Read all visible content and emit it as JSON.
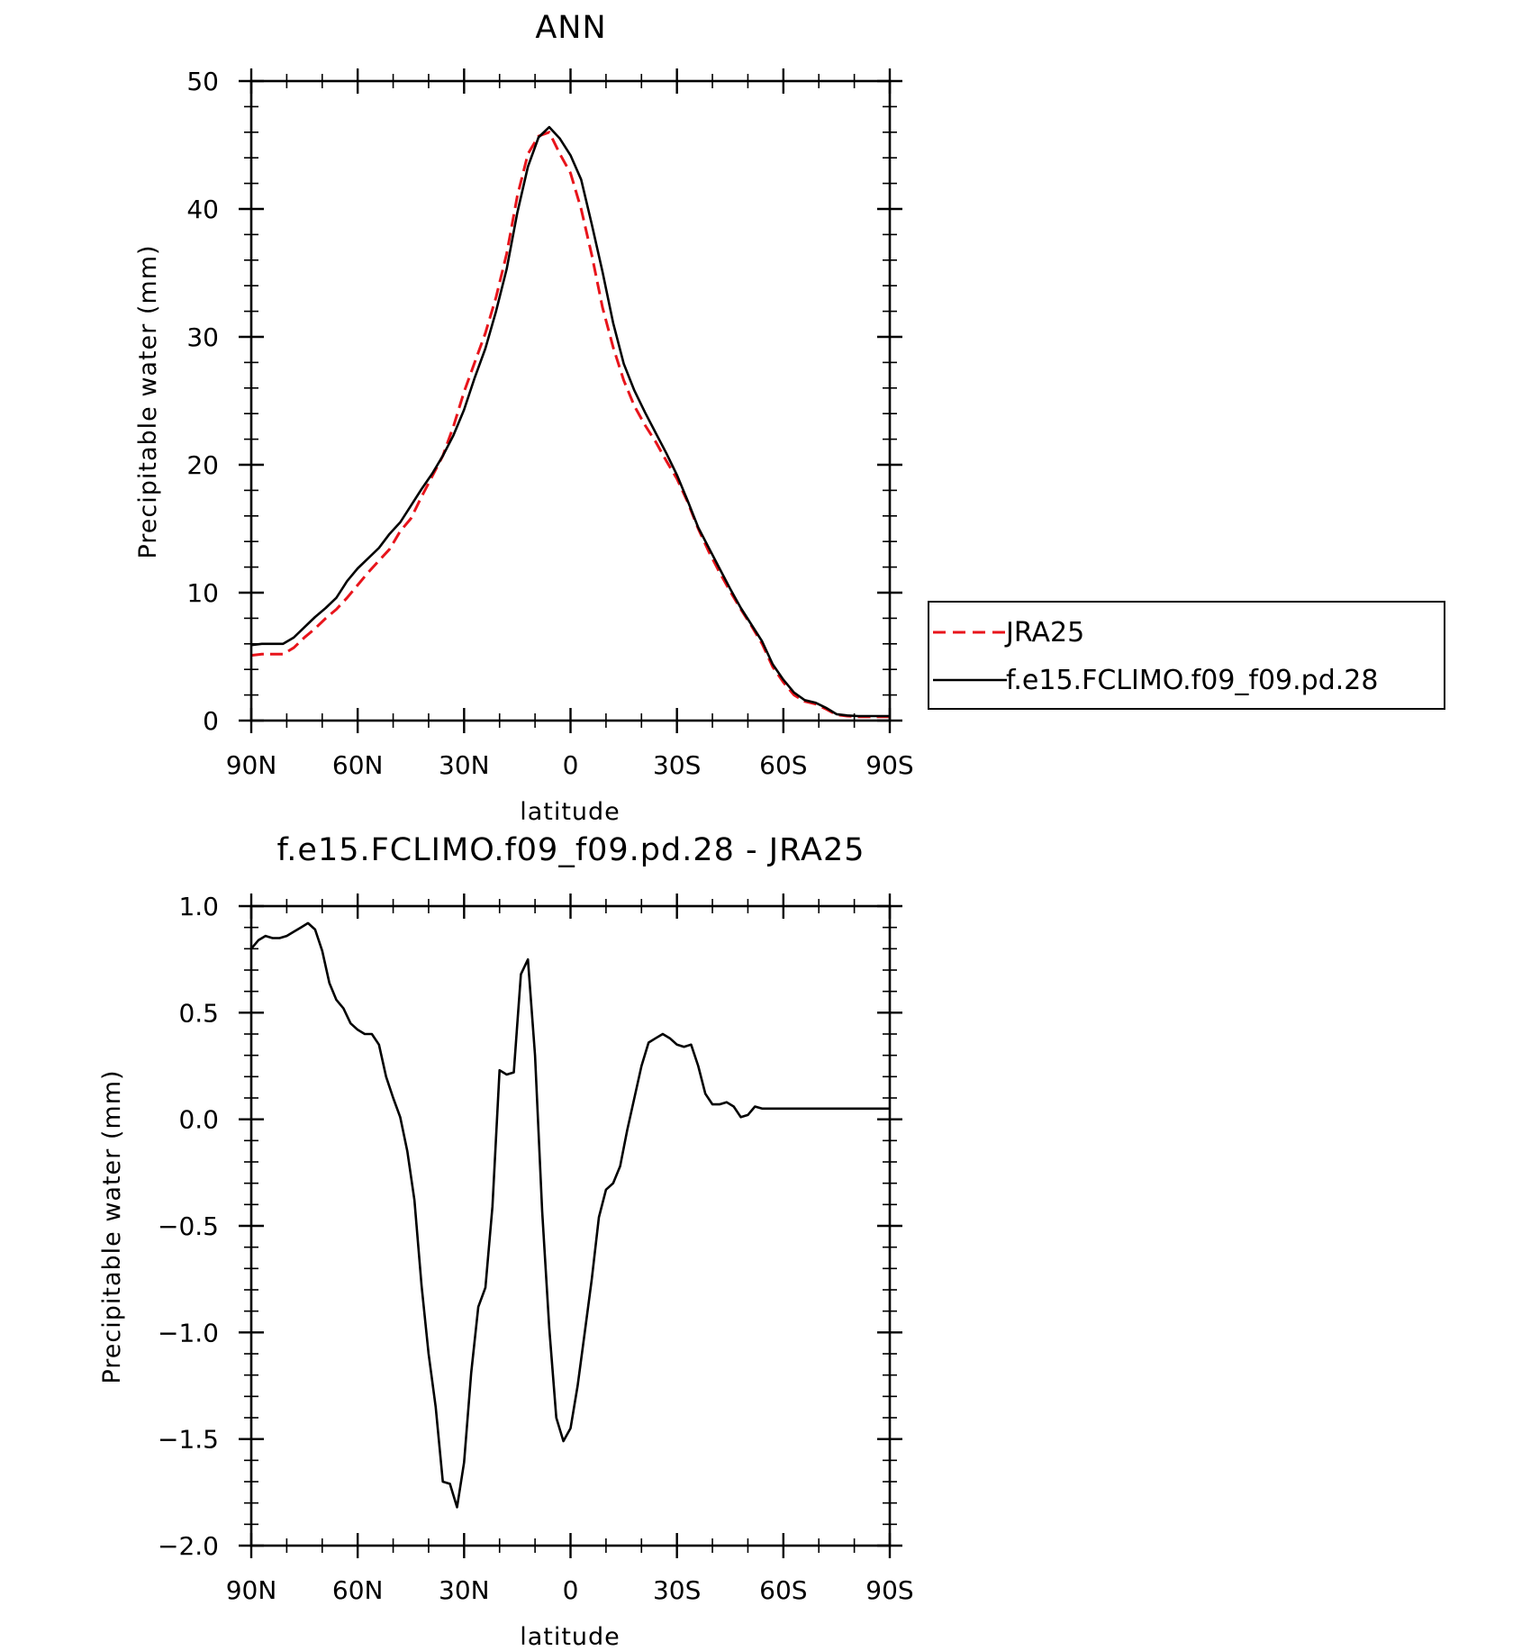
{
  "chart_data": [
    {
      "type": "line",
      "title": "ANN",
      "xlabel": "latitude",
      "ylabel": "Precipitable water (mm)",
      "xlim": [
        90,
        -90
      ],
      "ylim": [
        0,
        50
      ],
      "x_ticks": [
        90,
        60,
        30,
        0,
        -30,
        -60,
        -90
      ],
      "x_tick_labels": [
        "90N",
        "60N",
        "30N",
        "0",
        "30S",
        "60S",
        "90S"
      ],
      "y_ticks": [
        0,
        10,
        20,
        30,
        40,
        50
      ],
      "y_tick_labels": [
        "0",
        "10",
        "20",
        "30",
        "40",
        "50"
      ],
      "grid": false,
      "legend": {
        "placement": "right",
        "entries": [
          "JRA25",
          "f.e15.FCLIMO.f09_f09.pd.28"
        ]
      },
      "series": [
        {
          "name": "JRA25",
          "color": "#e8141b",
          "dash": "dashed",
          "x": [
            90,
            87,
            84,
            81,
            78,
            75,
            72,
            69,
            66,
            63,
            60,
            57,
            54,
            51,
            48,
            45,
            42,
            39,
            36,
            33,
            30,
            27,
            24,
            21,
            18,
            15,
            12,
            9,
            6,
            3,
            0,
            -3,
            -6,
            -9,
            -12,
            -15,
            -18,
            -21,
            -24,
            -27,
            -30,
            -33,
            -36,
            -39,
            -42,
            -45,
            -48,
            -51,
            -54,
            -57,
            -60,
            -63,
            -66,
            -69,
            -72,
            -75,
            -78,
            -81,
            -84,
            -87,
            -90
          ],
          "y": [
            5.1,
            5.2,
            5.2,
            5.2,
            5.7,
            6.5,
            7.2,
            8.0,
            8.7,
            9.6,
            10.6,
            11.6,
            12.5,
            13.4,
            14.8,
            15.8,
            17.5,
            19.1,
            20.7,
            23.0,
            25.7,
            28.0,
            30.3,
            33.1,
            36.5,
            41.0,
            44.3,
            45.7,
            46.0,
            44.3,
            42.8,
            40.0,
            36.4,
            32.3,
            29.2,
            26.6,
            24.6,
            23.1,
            21.8,
            20.3,
            18.9,
            17.1,
            15.0,
            13.2,
            11.6,
            10.1,
            8.7,
            7.4,
            6.0,
            4.2,
            3.0,
            2.0,
            1.5,
            1.3,
            0.9,
            0.45,
            0.35,
            0.3,
            0.3,
            0.3,
            0.3
          ]
        },
        {
          "name": "f.e15.FCLIMO.f09_f09.pd.28",
          "color": "#000000",
          "dash": "solid",
          "x": [
            90,
            87,
            84,
            81,
            78,
            75,
            72,
            69,
            66,
            63,
            60,
            57,
            54,
            51,
            48,
            45,
            42,
            39,
            36,
            33,
            30,
            27,
            24,
            21,
            18,
            15,
            12,
            9,
            6,
            3,
            0,
            -3,
            -6,
            -9,
            -12,
            -15,
            -18,
            -21,
            -24,
            -27,
            -30,
            -33,
            -36,
            -39,
            -42,
            -45,
            -48,
            -51,
            -54,
            -57,
            -60,
            -63,
            -66,
            -69,
            -72,
            -75,
            -78,
            -81,
            -84,
            -87,
            -90
          ],
          "y": [
            5.9,
            6.0,
            6.0,
            6.0,
            6.5,
            7.3,
            8.1,
            8.8,
            9.6,
            10.9,
            11.9,
            12.7,
            13.5,
            14.6,
            15.5,
            16.8,
            18.1,
            19.3,
            20.7,
            22.3,
            24.3,
            26.8,
            29.1,
            32.0,
            35.3,
            39.7,
            43.3,
            45.6,
            46.4,
            45.5,
            44.2,
            42.3,
            38.8,
            35.1,
            31.1,
            27.9,
            25.8,
            24.1,
            22.5,
            20.9,
            19.2,
            17.2,
            15.1,
            13.5,
            11.9,
            10.3,
            8.8,
            7.5,
            6.2,
            4.4,
            3.2,
            2.2,
            1.6,
            1.4,
            1.0,
            0.5,
            0.4,
            0.35,
            0.35,
            0.35,
            0.35
          ]
        }
      ]
    },
    {
      "type": "line",
      "title": "f.e15.FCLIMO.f09_f09.pd.28 - JRA25",
      "xlabel": "latitude",
      "ylabel": "Precipitable water (mm)",
      "xlim": [
        90,
        -90
      ],
      "ylim": [
        -2.0,
        1.0
      ],
      "x_ticks": [
        90,
        60,
        30,
        0,
        -30,
        -60,
        -90
      ],
      "x_tick_labels": [
        "90N",
        "60N",
        "30N",
        "0",
        "30S",
        "60S",
        "90S"
      ],
      "y_ticks": [
        1.0,
        0.5,
        0.0,
        -0.5,
        -1.0,
        -1.5,
        -2.0
      ],
      "y_tick_labels": [
        "1.0",
        "0.5",
        "0.0",
        "−0.5",
        "−1.0",
        "−1.5",
        "−2.0"
      ],
      "grid": false,
      "series": [
        {
          "color": "#000000",
          "dash": "solid",
          "x": [
            90,
            88,
            86,
            84,
            82,
            80,
            78,
            76,
            74,
            72,
            70,
            68,
            66,
            64,
            62,
            60,
            58,
            56,
            54,
            52,
            50,
            48,
            46,
            44,
            42,
            40,
            38,
            36,
            34,
            32,
            30,
            28,
            26,
            24,
            22,
            20,
            18,
            16,
            14,
            12,
            10,
            8,
            6,
            4,
            2,
            0,
            -2,
            -4,
            -6,
            -8,
            -10,
            -12,
            -14,
            -16,
            -18,
            -20,
            -22,
            -24,
            -26,
            -28,
            -30,
            -32,
            -34,
            -36,
            -38,
            -40,
            -42,
            -44,
            -46,
            -48,
            -50,
            -52,
            -54,
            -56,
            -58,
            -60,
            -62,
            -64,
            -66,
            -68,
            -70,
            -72,
            -74,
            -76,
            -78,
            -80,
            -82,
            -84,
            -86,
            -88,
            -90
          ],
          "y": [
            0.8,
            0.84,
            0.86,
            0.85,
            0.85,
            0.86,
            0.88,
            0.9,
            0.92,
            0.89,
            0.79,
            0.64,
            0.56,
            0.52,
            0.45,
            0.42,
            0.4,
            0.4,
            0.35,
            0.2,
            0.1,
            0.01,
            -0.15,
            -0.38,
            -0.78,
            -1.1,
            -1.35,
            -1.7,
            -1.71,
            -1.82,
            -1.61,
            -1.19,
            -0.88,
            -0.79,
            -0.41,
            0.23,
            0.21,
            0.22,
            0.68,
            0.75,
            0.3,
            -0.43,
            -0.98,
            -1.4,
            -1.51,
            -1.45,
            -1.25,
            -1.0,
            -0.75,
            -0.46,
            -0.33,
            -0.3,
            -0.22,
            -0.05,
            0.1,
            0.25,
            0.36,
            0.38,
            0.4,
            0.38,
            0.35,
            0.34,
            0.35,
            0.25,
            0.12,
            0.07,
            0.07,
            0.08,
            0.06,
            0.01,
            0.02,
            0.06,
            0.05,
            0.05,
            0.05,
            0.05,
            0.05,
            0.05,
            0.05,
            0.05,
            0.05,
            0.05,
            0.05,
            0.05,
            0.05,
            0.05,
            0.05,
            0.05,
            0.05,
            0.05,
            0.05
          ]
        }
      ]
    }
  ]
}
